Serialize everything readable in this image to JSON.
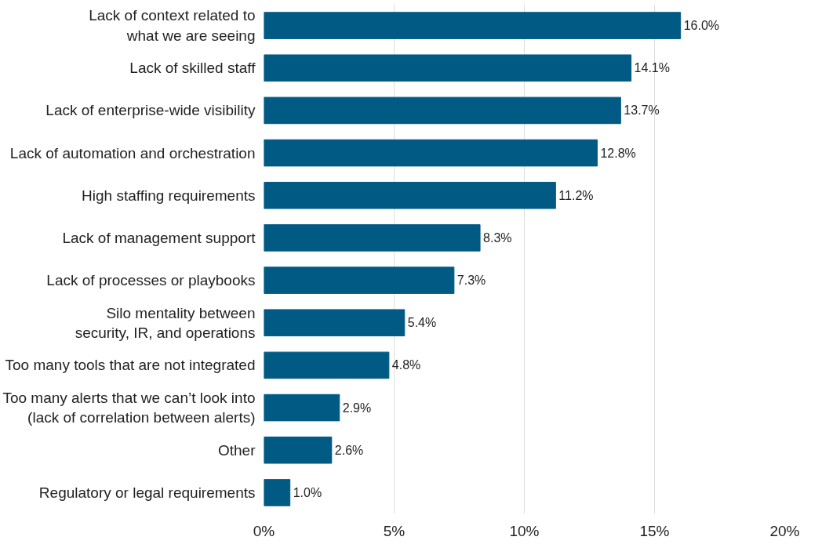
{
  "chart_data": {
    "type": "bar",
    "orientation": "horizontal",
    "categories": [
      "Lack of context related to\nwhat we are seeing",
      "Lack of skilled staff",
      "Lack of enterprise-wide visibility",
      "Lack of automation and orchestration",
      "High staffing requirements",
      "Lack of management support",
      "Lack of processes or playbooks",
      "Silo mentality between\nsecurity, IR, and operations",
      "Too many tools that are not integrated",
      "Too many alerts that we can’t look into\n(lack of correlation between alerts)",
      "Other",
      "Regulatory or legal requirements"
    ],
    "values": [
      16.0,
      14.1,
      13.7,
      12.8,
      11.2,
      8.3,
      7.3,
      5.4,
      4.8,
      2.9,
      2.6,
      1.0
    ],
    "value_labels": [
      "16.0%",
      "14.1%",
      "13.7%",
      "12.8%",
      "11.2%",
      "8.3%",
      "7.3%",
      "5.4%",
      "4.8%",
      "2.9%",
      "2.6%",
      "1.0%"
    ],
    "color": "#005a84",
    "xlim": [
      0,
      20
    ],
    "xticks": [
      {
        "value": 0,
        "label": "0%"
      },
      {
        "value": 5,
        "label": "5%"
      },
      {
        "value": 10,
        "label": "10%"
      },
      {
        "value": 15,
        "label": "15%"
      },
      {
        "value": 20,
        "label": "20%"
      }
    ],
    "grid": "x"
  }
}
